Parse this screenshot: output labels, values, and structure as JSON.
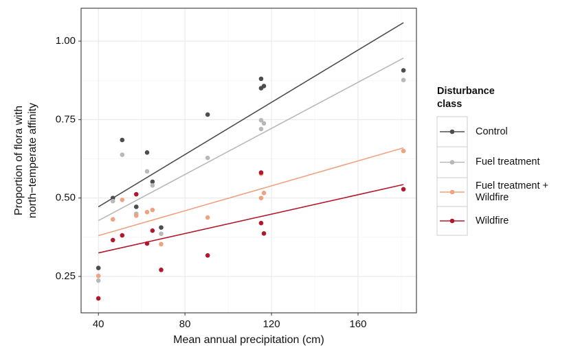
{
  "chart_data": {
    "type": "scatter",
    "xlabel": "Mean annual precipitation (cm)",
    "ylabel": [
      "Proportion of flora with",
      "north−temperate affinity"
    ],
    "legend_title": [
      "Disturbance",
      "class"
    ],
    "legend_position": "right",
    "grid": true,
    "xlim": [
      32,
      187
    ],
    "ylim": [
      0.134,
      1.105
    ],
    "xticks": [
      40,
      80,
      120,
      160
    ],
    "yticks": [
      {
        "value": 0.25,
        "label": "0.25"
      },
      {
        "value": 0.5,
        "label": "0.50"
      },
      {
        "value": 0.75,
        "label": "0.75"
      },
      {
        "value": 1,
        "label": "1.00"
      }
    ],
    "x": [
      40,
      46.7,
      51,
      57.5,
      62.5,
      65,
      69,
      90.5,
      115.2,
      115.2,
      116.5,
      181
    ],
    "trend_x": [
      40,
      181
    ],
    "series": [
      {
        "name": "Control",
        "color": "#4d4d4d",
        "values": [
          0.277,
          0.5,
          0.685,
          0.472,
          0.645,
          0.552,
          0.406,
          0.766,
          0.88,
          0.85,
          0.857,
          0.907
        ],
        "trend": [
          0.472,
          1.059
        ]
      },
      {
        "name": "Fuel treatment",
        "color": "#b8b8b8",
        "values": [
          0.237,
          0.49,
          0.638,
          0.45,
          0.585,
          0.54,
          0.386,
          0.628,
          0.748,
          0.72,
          0.738,
          0.876
        ],
        "trend": [
          0.428,
          0.946
        ]
      },
      {
        "name": "Fuel treatment + Wildfire",
        "color": "#efa27f",
        "values": [
          0.252,
          0.432,
          0.494,
          0.444,
          0.455,
          0.462,
          0.353,
          0.438,
          0.577,
          0.5,
          0.516,
          0.65
        ],
        "trend": [
          0.38,
          0.66
        ]
      },
      {
        "name": "Wildfire",
        "color": "#b2182b",
        "values": [
          0.18,
          0.366,
          0.381,
          0.512,
          0.355,
          0.396,
          0.271,
          0.317,
          0.581,
          0.42,
          0.387,
          0.528
        ],
        "trend": [
          0.325,
          0.543
        ]
      }
    ]
  }
}
